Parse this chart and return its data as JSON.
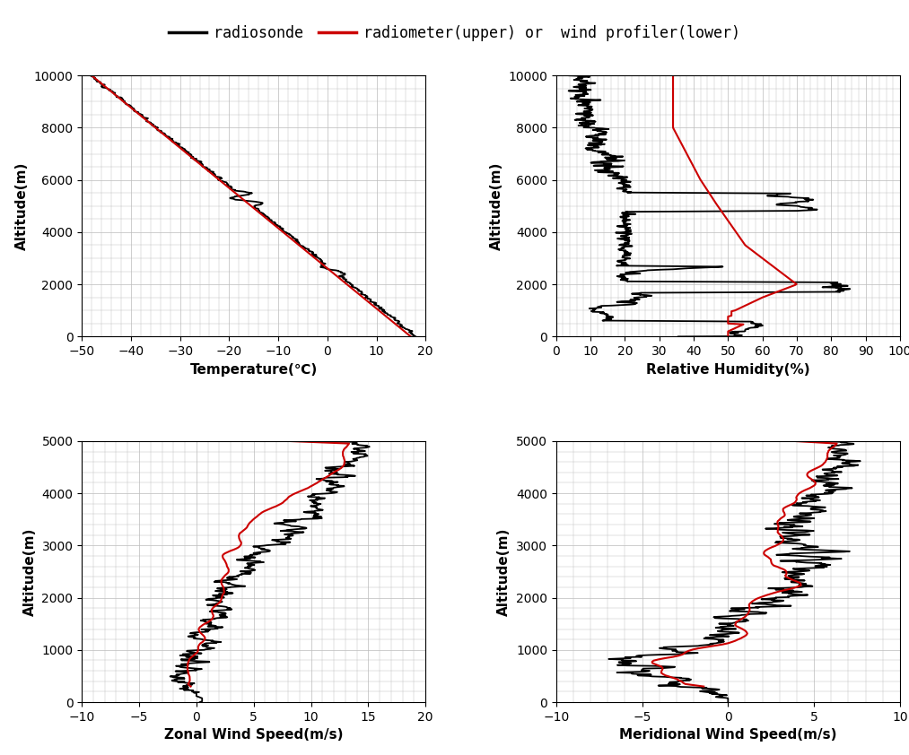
{
  "background_color": "#ffffff",
  "grid_color": "#bbbbbb",
  "temp_xlim": [
    -50,
    20
  ],
  "temp_xticks": [
    -50,
    -40,
    -30,
    -20,
    -10,
    0,
    10,
    20
  ],
  "temp_ylim": [
    0,
    10000
  ],
  "temp_yticks": [
    0,
    2000,
    4000,
    6000,
    8000,
    10000
  ],
  "temp_xlabel": "Temperature(℃)",
  "rh_xlim": [
    0,
    100
  ],
  "rh_xticks": [
    0,
    10,
    20,
    30,
    40,
    50,
    60,
    70,
    80,
    90,
    100
  ],
  "rh_ylim": [
    0,
    10000
  ],
  "rh_yticks": [
    0,
    2000,
    4000,
    6000,
    8000,
    10000
  ],
  "rh_xlabel": "Relative Humidity(%)",
  "zonal_xlim": [
    -10,
    20
  ],
  "zonal_xticks": [
    -10,
    -5,
    0,
    5,
    10,
    15,
    20
  ],
  "zonal_ylim": [
    0,
    5000
  ],
  "zonal_yticks": [
    0,
    1000,
    2000,
    3000,
    4000,
    5000
  ],
  "zonal_xlabel": "Zonal Wind Speed(m/s)",
  "merid_xlim": [
    -10,
    10
  ],
  "merid_xticks": [
    -10,
    -5,
    0,
    5,
    10
  ],
  "merid_ylim": [
    0,
    5000
  ],
  "merid_yticks": [
    0,
    1000,
    2000,
    3000,
    4000,
    5000
  ],
  "merid_xlabel": "Meridional Wind Speed(m/s)",
  "ylabel": "Altitude(m)",
  "line_black": "#000000",
  "line_red": "#cc0000",
  "linewidth_rs": 1.3,
  "linewidth_inst": 1.5,
  "legend_label_black": "radiosonde",
  "legend_label_red": "radiometer(upper) or  wind profiler(lower)"
}
